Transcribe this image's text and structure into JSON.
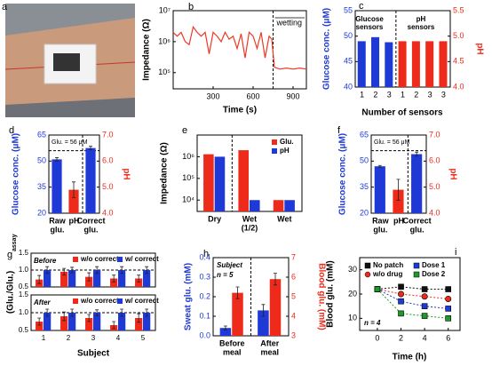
{
  "photo": {
    "panel": "a"
  },
  "chart_data": [
    {
      "type": "line",
      "panel": "b",
      "log": true,
      "xlabel": "Time (s)",
      "ylabel": "Impedance (Ω)",
      "x": [
        0,
        30,
        60,
        90,
        120,
        150,
        180,
        210,
        240,
        270,
        300,
        330,
        360,
        390,
        420,
        450,
        480,
        510,
        540,
        570,
        600,
        630,
        660,
        690,
        720,
        740,
        760,
        800,
        850,
        900,
        950,
        1000
      ],
      "series": [
        {
          "color": "#ee3a24",
          "values": [
            2000000.0,
            1500000.0,
            2000000.0,
            1000000.0,
            800000.0,
            3000000.0,
            2000000.0,
            1500000.0,
            2000000.0,
            400000.0,
            2000000.0,
            1500000.0,
            1000000.0,
            2000000.0,
            1200000.0,
            1500000.0,
            600000.0,
            1800000.0,
            300000.0,
            2000000.0,
            1500000.0,
            600000.0,
            2000000.0,
            300000.0,
            1500000.0,
            1200000.0,
            150000.0,
            130000.0,
            140000.0,
            130000.0,
            140000.0,
            130000.0
          ]
        }
      ],
      "xlim": [
        0,
        1000
      ],
      "xticks": [
        300,
        600,
        900
      ],
      "ylim": [
        30000,
        10000000
      ],
      "yticks": [
        {
          "value": 100000,
          "label": "10⁵"
        },
        {
          "value": 1000000,
          "label": "10⁶"
        },
        {
          "value": 10000000,
          "label": "10⁷"
        }
      ],
      "vline": 750,
      "annotations": [
        "wetting"
      ]
    },
    {
      "type": "bar",
      "panel": "c",
      "xlabel": "Number of sensors",
      "ylabel": "Glucose conc. (μM)",
      "y2label": "pH",
      "categories": [
        "1",
        "2",
        "3",
        "1",
        "2",
        "3",
        "3"
      ],
      "series": [
        {
          "color": "#1f39d6",
          "values": [
            49,
            49.8,
            48.8,
            null,
            null,
            null,
            null
          ]
        },
        {
          "color": "#ee2b1b",
          "axis": "y2",
          "values": [
            null,
            null,
            null,
            4.9,
            4.9,
            4.9,
            4.9
          ]
        }
      ],
      "ylim": [
        40,
        55
      ],
      "yticks": [
        40,
        45,
        50,
        55
      ],
      "y2lim": [
        4,
        5.5
      ],
      "y2ticks": [
        {
          "value": 4,
          "label": "4.0"
        },
        {
          "value": 4.5,
          "label": "4.5"
        },
        {
          "value": 5,
          "label": "5.0"
        },
        {
          "value": 5.5,
          "label": "5.5"
        }
      ],
      "annotations": [
        [
          "Glucose",
          "sensors"
        ],
        [
          "pH",
          "sensors"
        ]
      ]
    },
    {
      "type": "bar",
      "panel": "d",
      "ylabel": "Glucose conc. (μM)",
      "y2label": "pH",
      "categories": [
        [
          "Raw",
          "glu."
        ],
        "pH",
        [
          "Correct",
          "glu."
        ]
      ],
      "series": [
        {
          "color": "#1f39d6",
          "values": [
            51,
            null,
            57.5
          ],
          "errors": [
            1,
            null,
            1
          ]
        },
        {
          "color": "#ee2b1b",
          "axis": "y2",
          "values": [
            null,
            4.9,
            null
          ],
          "errors": [
            null,
            0.3,
            null
          ]
        }
      ],
      "ylim": [
        20,
        65
      ],
      "yticks": [
        20,
        35,
        50,
        65
      ],
      "y2lim": [
        4,
        7
      ],
      "y2ticks": [
        {
          "value": 4,
          "label": "4.0"
        },
        {
          "value": 5,
          "label": "5.0"
        },
        {
          "value": 6,
          "label": "6.0"
        },
        {
          "value": 7,
          "label": "7.0"
        }
      ],
      "reference": {
        "value": 56,
        "label": "Glu. = 56 μM"
      }
    },
    {
      "type": "bar",
      "panel": "e",
      "log": true,
      "ylabel": "Impedance (Ω)",
      "categories": [
        "Dry",
        [
          "Wet",
          "(1/2)"
        ],
        "Wet"
      ],
      "series": [
        {
          "name": "Glu.",
          "color": "#ee2b1b",
          "values": [
            1300000,
            2000000,
            10000
          ]
        },
        {
          "name": "pH",
          "color": "#1f39d6",
          "values": [
            1000000,
            10000,
            10000
          ]
        }
      ],
      "ylim": [
        3000,
        10000000
      ],
      "yticks": [
        {
          "value": 10000,
          "label": "10⁴"
        },
        {
          "value": 100000,
          "label": "10⁵"
        },
        {
          "value": 1000000,
          "label": "10⁶"
        }
      ]
    },
    {
      "type": "bar",
      "panel": "f",
      "ylabel": "Glucose conc. (μM)",
      "y2label": "pH",
      "categories": [
        [
          "Raw",
          "glu."
        ],
        "pH",
        [
          "Correct",
          "glu."
        ]
      ],
      "series": [
        {
          "color": "#1f39d6",
          "values": [
            47,
            null,
            54
          ],
          "errors": [
            0.5,
            null,
            1.2
          ]
        },
        {
          "color": "#ee2b1b",
          "axis": "y2",
          "values": [
            null,
            4.9,
            null
          ],
          "errors": [
            null,
            0.4,
            null
          ]
        }
      ],
      "ylim": [
        20,
        65
      ],
      "yticks": [
        20,
        35,
        50,
        65
      ],
      "y2lim": [
        4,
        7
      ],
      "y2ticks": [
        {
          "value": 4,
          "label": "4.0"
        },
        {
          "value": 5,
          "label": "5.0"
        },
        {
          "value": 6,
          "label": "6.0"
        },
        {
          "value": 7,
          "label": "7.0"
        }
      ],
      "reference": {
        "value": 56,
        "label": "Glu. = 56 μM"
      }
    },
    {
      "type": "bar",
      "panel": "g",
      "ylabel": "(Glu./Glu.)",
      "ylabel_subscript": "assay",
      "series": [
        {
          "name": "w/o correct",
          "color": "#ee2b1b",
          "values": [
            0.72,
            0.95,
            0.8,
            0.75,
            0.75
          ],
          "errors": [
            0.12,
            0.1,
            0.12,
            0.1,
            0.1
          ]
        },
        {
          "name": "w/ correct",
          "color": "#1f39d6",
          "values": [
            1.0,
            1.0,
            1.0,
            1.0,
            1.0
          ],
          "errors": [
            0.1,
            0.08,
            0.1,
            0.1,
            0.1
          ]
        }
      ],
      "ylim": [
        0.5,
        1.5
      ],
      "yticks": [
        0.5,
        {
          "value": 1,
          "label": "1.0"
        },
        1.5
      ],
      "reference": {
        "value": 1
      },
      "annotations": [
        "Before"
      ]
    },
    {
      "type": "bar",
      "xlabel": "Subject",
      "categories": [
        "1",
        "2",
        "3",
        "4",
        "5"
      ],
      "series": [
        {
          "name": "w/o correct",
          "color": "#ee2b1b",
          "values": [
            0.75,
            0.9,
            0.85,
            0.65,
            0.85
          ],
          "errors": [
            0.1,
            0.12,
            0.1,
            0.1,
            0.12
          ]
        },
        {
          "name": "w/ correct",
          "color": "#1f39d6",
          "values": [
            1.0,
            1.0,
            1.0,
            1.0,
            1.0
          ],
          "errors": [
            0.1,
            0.1,
            0.08,
            0.1,
            0.1
          ]
        }
      ],
      "ylim": [
        0.5,
        1.5
      ],
      "yticks": [
        0.5,
        {
          "value": 1,
          "label": "1.0"
        },
        1.5
      ],
      "reference": {
        "value": 1
      },
      "annotations": [
        "After"
      ]
    },
    {
      "type": "bar",
      "panel": "h",
      "ylabel": "Sweat glu. (mM)",
      "y2label": "Blood glu. (mM)",
      "categories": [
        [
          "Before",
          "meal"
        ],
        [
          "After",
          "meal"
        ]
      ],
      "series": [
        {
          "color": "#1f39d6",
          "values": [
            0.04,
            0.13
          ],
          "errors": [
            0.01,
            0.03
          ]
        },
        {
          "color": "#ee2b1b",
          "axis": "y2",
          "values": [
            5.2,
            5.9
          ],
          "errors": [
            0.3,
            0.3
          ]
        }
      ],
      "ylim": [
        0,
        0.4
      ],
      "yticks": [
        {
          "value": 0,
          "label": "0.0"
        },
        0.1,
        0.2,
        0.3,
        0.4
      ],
      "y2lim": [
        3,
        7
      ],
      "y2ticks": [
        3,
        4,
        5,
        6,
        7
      ],
      "annotations": [
        "Subject",
        "n = 5"
      ]
    },
    {
      "type": "line",
      "panel": "i",
      "markers": true,
      "xlabel": "Time (h)",
      "ylabel": "Blood glu. (mM)",
      "x": [
        0,
        2,
        4,
        6
      ],
      "series": [
        {
          "name": "No patch",
          "color": "#111111",
          "marker": "square",
          "values": [
            22,
            23,
            22,
            22
          ]
        },
        {
          "name": "w/o drug",
          "color": "#ee2b1b",
          "marker": "circle",
          "values": [
            22,
            20,
            19,
            18
          ]
        },
        {
          "name": "Dose 1",
          "color": "#1f39d6",
          "marker": "square",
          "values": [
            22,
            17,
            15,
            14
          ]
        },
        {
          "name": "Dose 2",
          "color": "#1d9a2a",
          "marker": "square",
          "values": [
            22,
            12,
            11,
            10
          ]
        }
      ],
      "xlim": [
        -1.5,
        7
      ],
      "xticks": [
        0,
        2,
        4,
        6
      ],
      "ylim": [
        5,
        35
      ],
      "yticks": [
        10,
        20,
        30
      ],
      "annotations": [
        "n = 4"
      ]
    }
  ]
}
